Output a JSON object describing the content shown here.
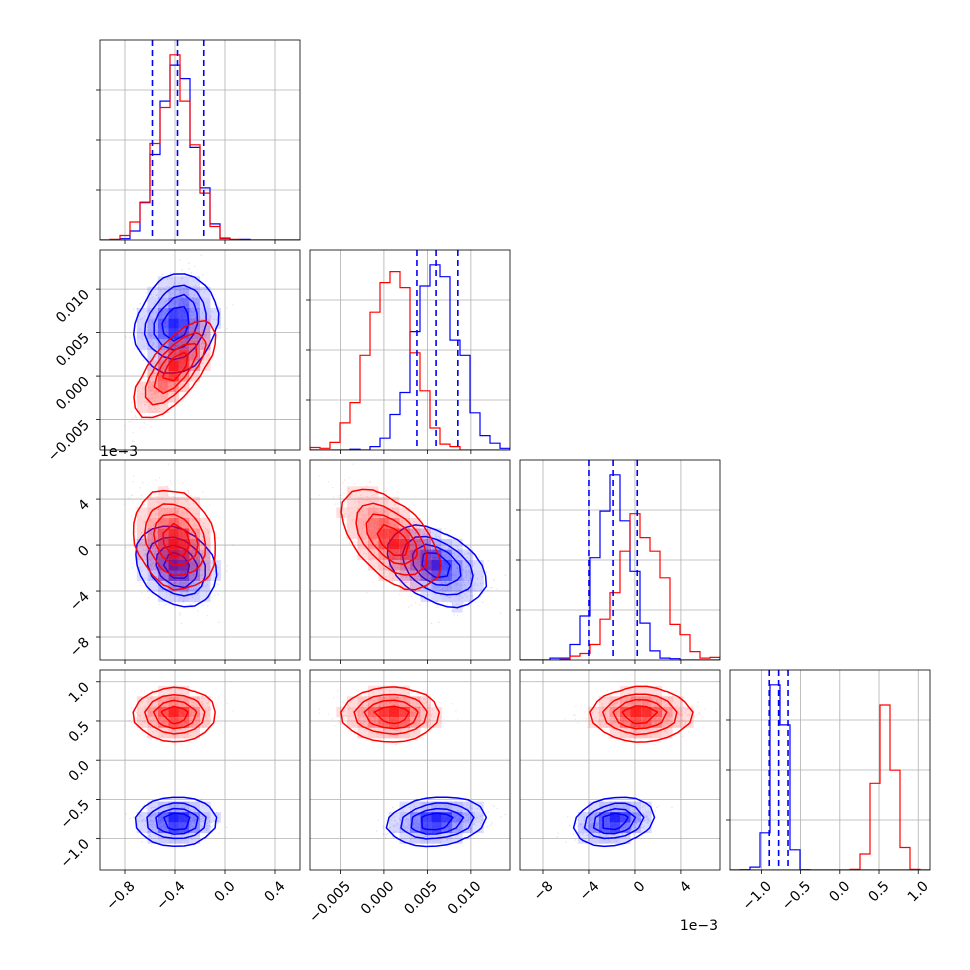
{
  "chart_data": {
    "type": "corner",
    "grid": true,
    "parameters": [
      {
        "range": [
          -1.0,
          0.6
        ],
        "ticks": [
          -0.8,
          -0.4,
          0.0,
          0.4
        ],
        "tick_labels": [
          "−0.8",
          "−0.4",
          "0.0",
          "0.4"
        ],
        "offset_label": ""
      },
      {
        "range": [
          -0.0085,
          0.0145
        ],
        "ticks": [
          -0.005,
          0.0,
          0.005,
          0.01
        ],
        "tick_labels": [
          "−0.005",
          "0.000",
          "0.005",
          "0.010"
        ],
        "offset_label": ""
      },
      {
        "range": [
          -10.0,
          7.4
        ],
        "ticks": [
          -8,
          -4,
          0,
          4
        ],
        "tick_labels": [
          "−8",
          "−4",
          "0",
          "4"
        ],
        "offset_label": "1e−3"
      },
      {
        "range": [
          -1.4,
          1.15
        ],
        "ticks": [
          -1.0,
          -0.5,
          0.0,
          0.5,
          1.0
        ],
        "tick_labels": [
          "−1.0",
          "−0.5",
          "0.0",
          "0.5",
          "1.0"
        ],
        "offset_label": ""
      }
    ],
    "series": [
      {
        "color": "#0000ff",
        "means": [
          -0.38,
          0.0062,
          -1.9,
          -0.78
        ],
        "stds": [
          0.14,
          0.0025,
          1.45,
          0.09
        ],
        "correlations": {
          "1_0": 0.15,
          "2_0": -0.3,
          "2_1": -0.45,
          "3_0": 0.0,
          "3_1": 0.3,
          "3_2": 0.4
        },
        "quantiles": [
          [
            -0.58,
            -0.38,
            -0.17
          ],
          [
            0.0038,
            0.006,
            0.0085
          ],
          [
            -4.0,
            -1.9,
            0.2
          ],
          [
            -0.9,
            -0.78,
            -0.66
          ]
        ]
      },
      {
        "color": "#ff0000",
        "means": [
          -0.4,
          0.0008,
          0.5,
          0.58
        ],
        "stds": [
          0.14,
          0.0025,
          2.0,
          0.11
        ],
        "correlations": {
          "1_0": 0.85,
          "2_0": -0.2,
          "2_1": -0.6,
          "3_0": 0.0,
          "3_1": 0.0,
          "3_2": 0.0
        },
        "quantiles": null
      }
    ]
  }
}
